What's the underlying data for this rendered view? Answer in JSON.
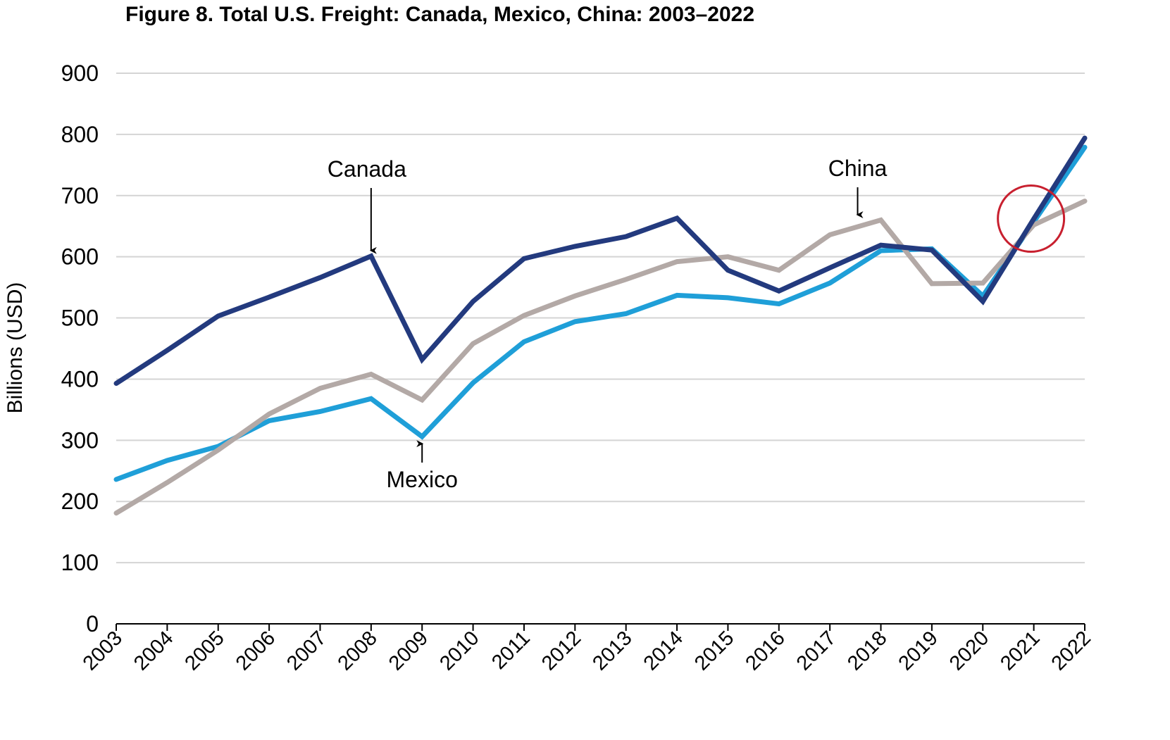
{
  "chart_data": {
    "type": "line",
    "title": "Figure 8. Total U.S. Freight: Canada, Mexico, China: 2003–2022",
    "xlabel": "",
    "ylabel": "Billions (USD)",
    "ylim": [
      0,
      900
    ],
    "yticks": [
      0,
      100,
      200,
      300,
      400,
      500,
      600,
      700,
      800,
      900
    ],
    "grid": true,
    "categories": [
      "2003",
      "2004",
      "2005",
      "2006",
      "2007",
      "2008",
      "2009",
      "2010",
      "2011",
      "2012",
      "2013",
      "2014",
      "2015",
      "2016",
      "2017",
      "2018",
      "2019",
      "2020",
      "2021",
      "2022"
    ],
    "series": [
      {
        "name": "Canada",
        "color": "#233a7e",
        "values": [
          393,
          447,
          503,
          534,
          566,
          601,
          432,
          527,
          597,
          617,
          633,
          663,
          578,
          544,
          582,
          619,
          611,
          527,
          662,
          794
        ]
      },
      {
        "name": "Mexico",
        "color": "#1f9fd8",
        "values": [
          236,
          267,
          290,
          332,
          347,
          368,
          306,
          394,
          461,
          494,
          507,
          537,
          533,
          523,
          557,
          610,
          613,
          536,
          657,
          779
        ]
      },
      {
        "name": "China",
        "color": "#b3a9a6",
        "values": [
          181,
          231,
          284,
          343,
          385,
          408,
          366,
          458,
          504,
          536,
          563,
          592,
          600,
          578,
          636,
          660,
          556,
          557,
          652,
          691
        ]
      }
    ],
    "annotations": [
      {
        "text": "Canada",
        "series": "Canada",
        "category": "2008",
        "arrow": "down"
      },
      {
        "text": "Mexico",
        "series": "Mexico",
        "category": "2009",
        "arrow": "up"
      },
      {
        "text": "China",
        "series": "China",
        "category": "2018",
        "arrow": "down"
      }
    ],
    "highlight": {
      "shape": "circle",
      "category": "2021",
      "value": 660,
      "color": "#c8202f"
    }
  }
}
